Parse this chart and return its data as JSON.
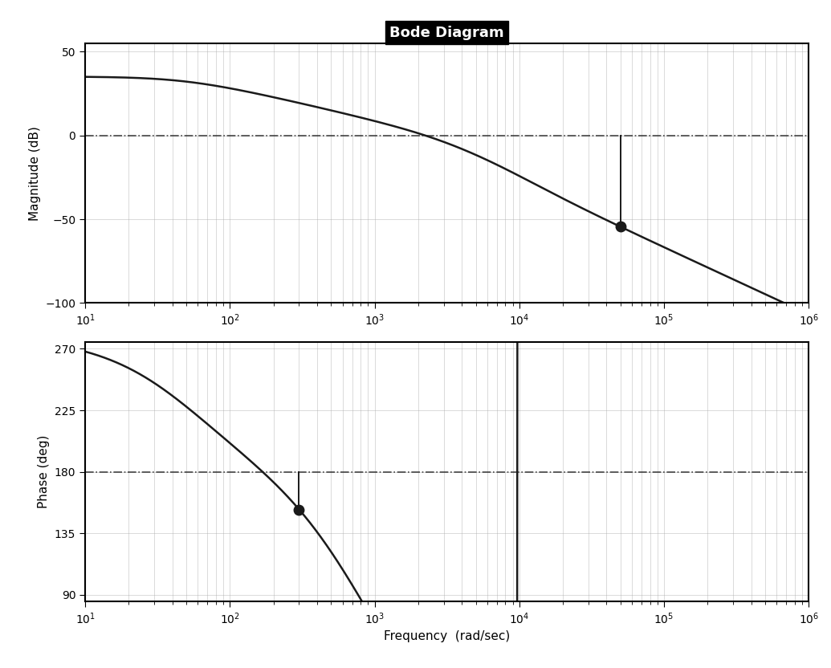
{
  "title": "Bode Diagram",
  "xlabel": "Frequency  (rad/sec)",
  "ylabel_mag": "Magnitude (dB)",
  "ylabel_phase": "Phase (deg)",
  "freq_range": [
    10,
    1000000
  ],
  "mag_ylim": [
    -100,
    55
  ],
  "phase_ylim": [
    85,
    275
  ],
  "mag_yticks": [
    50,
    0,
    -50,
    -100
  ],
  "phase_yticks": [
    270,
    225,
    180,
    135,
    90
  ],
  "mag_ref_line": 0,
  "phase_ref_line": 180,
  "marker1_freq": 300,
  "marker2_freq": 50000,
  "line_color": "#1a1a1a",
  "marker_color": "#1a1a1a",
  "background_color": "#ffffff",
  "title_fontsize": 13,
  "label_fontsize": 11,
  "tick_fontsize": 10,
  "title_bg_color": "#000000",
  "title_text_color": "#ffffff"
}
